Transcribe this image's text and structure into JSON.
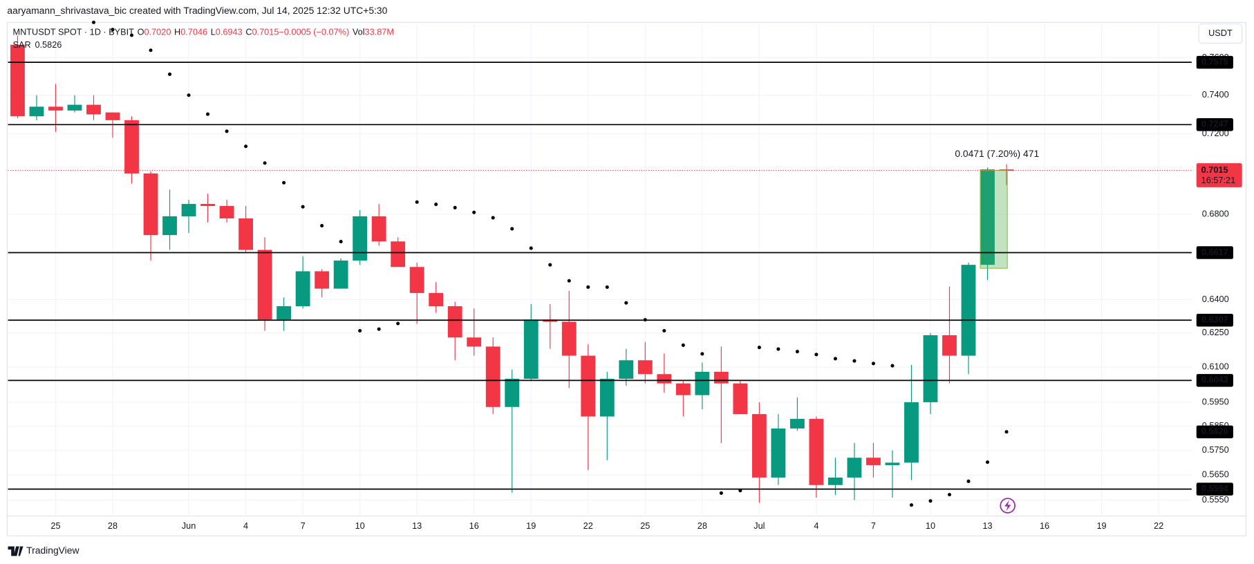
{
  "watermark": "aaryamann_shrivastava_bic created with TradingView.com, Jul 14, 2025 12:32 UTC+5:30",
  "brand": "TradingView",
  "currency": "USDT",
  "chart_data": {
    "type": "candlestick",
    "symbol": "MNTUSDT SPOT · 1D · BYBIT",
    "legend": [
      {
        "key": "O",
        "text": "0.7020"
      },
      {
        "key": "H",
        "text": "0.7046"
      },
      {
        "key": "L",
        "text": "0.6943"
      },
      {
        "key": "C",
        "text": "0.7015"
      },
      {
        "key": "",
        "text": "−0.0005 (−0.07%)"
      },
      {
        "key": "Vol",
        "text": "33.87M"
      }
    ],
    "categories": [
      null,
      null,
      "25",
      null,
      null,
      "28",
      null,
      null,
      null,
      "Jun",
      null,
      null,
      "4",
      null,
      null,
      "7",
      null,
      null,
      "10",
      null,
      null,
      "13",
      null,
      null,
      "16",
      null,
      null,
      "19",
      null,
      null,
      "22",
      null,
      null,
      "25",
      null,
      null,
      "28",
      null,
      null,
      "Jul",
      null,
      null,
      "4",
      null,
      null,
      "7",
      null,
      null,
      "10",
      null,
      null,
      "13",
      null,
      null,
      "16",
      null,
      null,
      "19",
      null,
      null,
      "22"
    ],
    "open": [
      0.767,
      0.729,
      0.734,
      0.732,
      0.735,
      0.731,
      0.727,
      0.7,
      0.67,
      0.679,
      0.685,
      0.684,
      0.678,
      0.663,
      0.631,
      0.637,
      0.653,
      0.645,
      0.658,
      0.679,
      0.667,
      0.655,
      0.643,
      0.637,
      0.623,
      0.619,
      0.593,
      0.605,
      0.631,
      0.63,
      0.615,
      0.589,
      0.605,
      0.613,
      0.607,
      0.603,
      0.598,
      0.608,
      0.603,
      0.59,
      0.564,
      0.584,
      0.588,
      0.561,
      0.564,
      0.572,
      0.569,
      0.57,
      0.595,
      0.624,
      0.615,
      0.656,
      0.702,
      null,
      null,
      null,
      null,
      null,
      null,
      null,
      null
    ],
    "high": [
      0.772,
      0.74,
      0.746,
      0.74,
      0.74,
      0.731,
      0.729,
      0.701,
      0.692,
      0.687,
      0.69,
      0.687,
      0.684,
      0.669,
      0.641,
      0.66,
      0.654,
      0.659,
      0.682,
      0.685,
      0.669,
      0.657,
      0.648,
      0.639,
      0.636,
      0.623,
      0.609,
      0.638,
      0.638,
      0.644,
      0.62,
      0.608,
      0.618,
      0.621,
      0.616,
      0.604,
      0.612,
      0.619,
      0.604,
      0.595,
      0.59,
      0.597,
      0.589,
      0.572,
      0.578,
      0.578,
      0.575,
      0.611,
      0.625,
      0.646,
      0.657,
      0.703,
      0.7046,
      null,
      null,
      null,
      null,
      null,
      null,
      null,
      null
    ],
    "low": [
      0.728,
      0.727,
      0.721,
      0.731,
      0.727,
      0.718,
      0.695,
      0.658,
      0.663,
      0.671,
      0.676,
      0.676,
      0.662,
      0.626,
      0.626,
      0.636,
      0.641,
      0.645,
      0.656,
      0.665,
      0.655,
      0.629,
      0.634,
      0.613,
      0.615,
      0.59,
      0.558,
      0.604,
      0.618,
      0.601,
      0.567,
      0.571,
      0.602,
      0.603,
      0.599,
      0.589,
      0.592,
      0.578,
      0.59,
      0.554,
      0.561,
      0.583,
      0.556,
      0.557,
      0.555,
      0.564,
      0.556,
      0.563,
      0.59,
      0.603,
      0.607,
      0.649,
      0.6943,
      null,
      null,
      null,
      null,
      null,
      null,
      null,
      null
    ],
    "close": [
      0.729,
      0.734,
      0.732,
      0.735,
      0.73,
      0.727,
      0.7,
      0.67,
      0.679,
      0.685,
      0.684,
      0.678,
      0.663,
      0.631,
      0.637,
      0.653,
      0.645,
      0.658,
      0.679,
      0.667,
      0.655,
      0.643,
      0.637,
      0.623,
      0.619,
      0.593,
      0.605,
      0.631,
      0.63,
      0.615,
      0.589,
      0.605,
      0.613,
      0.607,
      0.603,
      0.598,
      0.608,
      0.603,
      0.59,
      0.564,
      0.584,
      0.588,
      0.561,
      0.564,
      0.572,
      0.569,
      0.57,
      0.595,
      0.624,
      0.615,
      0.656,
      0.702,
      0.7015,
      null,
      null,
      null,
      null,
      null,
      null,
      null,
      null
    ],
    "up_color": "#089981",
    "down_color": "#f23645",
    "sar": {
      "name": "SAR",
      "color": "#000000",
      "values": [
        null,
        null,
        null,
        null,
        0.7793,
        0.7753,
        0.7722,
        0.764,
        0.7511,
        0.74,
        0.7301,
        0.7213,
        0.7136,
        0.7052,
        0.6954,
        0.6836,
        0.6745,
        0.6669,
        0.626,
        0.6267,
        0.6292,
        0.6859,
        0.6848,
        0.6832,
        0.6809,
        0.6783,
        0.673,
        0.6638,
        0.656,
        0.6486,
        0.6457,
        0.6457,
        0.6385,
        0.6309,
        0.626,
        0.6196,
        0.6158,
        0.5578,
        0.5588,
        0.6186,
        0.6179,
        0.6168,
        0.6155,
        0.6137,
        0.6127,
        0.6116,
        0.6106,
        0.5531,
        0.5547,
        0.5572,
        0.5625,
        0.5702,
        0.5826,
        null,
        null,
        null,
        null,
        null,
        null,
        null,
        null
      ]
    },
    "levels": [
      0.7575,
      0.7247,
      0.6617,
      0.6307,
      0.6043,
      0.5594
    ],
    "level_color": "#000000",
    "countdown": "16:57:21",
    "measure": {
      "low": 0.6544,
      "high": 0.7015,
      "label": "0.0471 (7.20%) 471"
    },
    "ylim": [
      0.5488,
      0.7784
    ],
    "log": true,
    "grid": true,
    "yticks": [
      {
        "value": 0.76,
        "label": "0.7600"
      },
      {
        "value": 0.74,
        "label": "0.7400"
      },
      {
        "value": 0.72,
        "label": "0.7200"
      },
      {
        "value": 0.68,
        "label": "0.6800"
      },
      {
        "value": 0.64,
        "label": "0.6400"
      },
      {
        "value": 0.625,
        "label": "0.6250"
      },
      {
        "value": 0.61,
        "label": "0.6100"
      },
      {
        "value": 0.595,
        "label": "0.5950"
      },
      {
        "value": 0.585,
        "label": "0.5850"
      },
      {
        "value": 0.575,
        "label": "0.5750"
      },
      {
        "value": 0.565,
        "label": "0.5650"
      },
      {
        "value": 0.555,
        "label": "0.5550"
      }
    ]
  }
}
